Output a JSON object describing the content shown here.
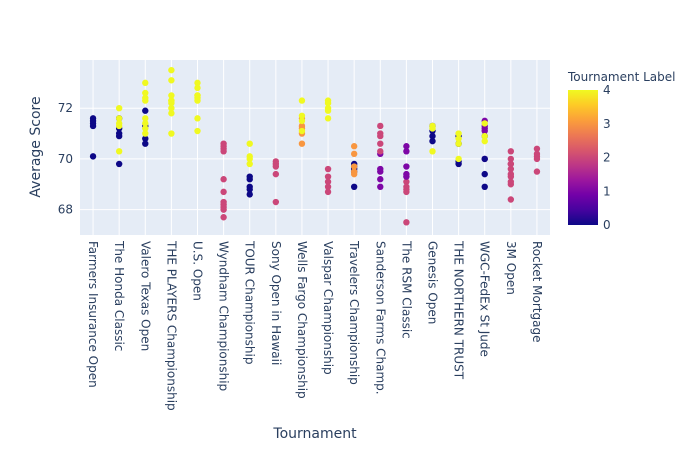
{
  "chart_data": {
    "type": "scatter",
    "xlabel": "Tournament",
    "ylabel": "Average Score",
    "ylim": [
      67.0,
      73.9
    ],
    "yticks": [
      68,
      70,
      72
    ],
    "grid": true,
    "colorbar": {
      "title": "Tournament Label",
      "range": [
        0,
        4
      ],
      "ticks": [
        0,
        1,
        2,
        3,
        4
      ],
      "colorscale": [
        "#0d0887",
        "#46039f",
        "#7201a8",
        "#9c179e",
        "#bd3786",
        "#d8576b",
        "#ed7953",
        "#fb9f3a",
        "#fdca26",
        "#f0f921"
      ]
    },
    "categories": [
      "Farmers Insurance Open",
      "The Honda Classic",
      "Valero Texas Open",
      "THE PLAYERS Championship",
      "U.S. Open",
      "Wyndham Championship",
      "TOUR Championship",
      "Sony Open in Hawaii",
      "Wells Fargo Championship",
      "Valspar Championship",
      "Travelers Championship",
      "Sanderson Farms Champ.",
      "The RSM Classic",
      "Genesis Open",
      "THE NORTHERN TRUST",
      "WGC-FedEx St Jude",
      "3M Open",
      "Rocket Mortgage"
    ],
    "points": [
      {
        "x": "Farmers Insurance Open",
        "y": 71.6,
        "label": 0
      },
      {
        "x": "Farmers Insurance Open",
        "y": 71.5,
        "label": 0
      },
      {
        "x": "Farmers Insurance Open",
        "y": 71.4,
        "label": 0
      },
      {
        "x": "Farmers Insurance Open",
        "y": 71.3,
        "label": 0
      },
      {
        "x": "Farmers Insurance Open",
        "y": 70.1,
        "label": 0
      },
      {
        "x": "The Honda Classic",
        "y": 71.6,
        "label": 0
      },
      {
        "x": "The Honda Classic",
        "y": 71.2,
        "label": 0
      },
      {
        "x": "The Honda Classic",
        "y": 71.0,
        "label": 0
      },
      {
        "x": "The Honda Classic",
        "y": 70.9,
        "label": 0
      },
      {
        "x": "The Honda Classic",
        "y": 69.8,
        "label": 0
      },
      {
        "x": "The Honda Classic",
        "y": 72.0,
        "label": 4
      },
      {
        "x": "The Honda Classic",
        "y": 71.6,
        "label": 4
      },
      {
        "x": "The Honda Classic",
        "y": 71.4,
        "label": 4
      },
      {
        "x": "The Honda Classic",
        "y": 71.3,
        "label": 4
      },
      {
        "x": "The Honda Classic",
        "y": 70.3,
        "label": 4
      },
      {
        "x": "Valero Texas Open",
        "y": 73.0,
        "label": 4
      },
      {
        "x": "Valero Texas Open",
        "y": 72.6,
        "label": 4
      },
      {
        "x": "Valero Texas Open",
        "y": 72.4,
        "label": 4
      },
      {
        "x": "Valero Texas Open",
        "y": 72.3,
        "label": 4
      },
      {
        "x": "Valero Texas Open",
        "y": 71.9,
        "label": 0
      },
      {
        "x": "Valero Texas Open",
        "y": 71.3,
        "label": 0
      },
      {
        "x": "Valero Texas Open",
        "y": 70.8,
        "label": 0
      },
      {
        "x": "Valero Texas Open",
        "y": 70.6,
        "label": 0
      },
      {
        "x": "Valero Texas Open",
        "y": 71.6,
        "label": 4
      },
      {
        "x": "Valero Texas Open",
        "y": 71.4,
        "label": 4
      },
      {
        "x": "Valero Texas Open",
        "y": 71.2,
        "label": 4
      },
      {
        "x": "Valero Texas Open",
        "y": 71.0,
        "label": 4
      },
      {
        "x": "THE PLAYERS Championship",
        "y": 72.3,
        "label": 4
      },
      {
        "x": "THE PLAYERS Championship",
        "y": 72.2,
        "label": 4
      },
      {
        "x": "THE PLAYERS Championship",
        "y": 72.0,
        "label": 4
      },
      {
        "x": "THE PLAYERS Championship",
        "y": 71.0,
        "label": 4
      },
      {
        "x": "THE PLAYERS Championship",
        "y": 73.5,
        "label": 4
      },
      {
        "x": "THE PLAYERS Championship",
        "y": 73.1,
        "label": 4
      },
      {
        "x": "THE PLAYERS Championship",
        "y": 72.5,
        "label": 4
      },
      {
        "x": "THE PLAYERS Championship",
        "y": 72.3,
        "label": 4
      },
      {
        "x": "THE PLAYERS Championship",
        "y": 71.8,
        "label": 4
      },
      {
        "x": "U.S. Open",
        "y": 73.0,
        "label": 4
      },
      {
        "x": "U.S. Open",
        "y": 72.5,
        "label": 4
      },
      {
        "x": "U.S. Open",
        "y": 72.3,
        "label": 4
      },
      {
        "x": "U.S. Open",
        "y": 71.1,
        "label": 4
      },
      {
        "x": "U.S. Open",
        "y": 72.8,
        "label": 4
      },
      {
        "x": "U.S. Open",
        "y": 72.5,
        "label": 4
      },
      {
        "x": "U.S. Open",
        "y": 72.4,
        "label": 4
      },
      {
        "x": "U.S. Open",
        "y": 71.6,
        "label": 4
      },
      {
        "x": "Wyndham Championship",
        "y": 68.7,
        "label": 2
      },
      {
        "x": "Wyndham Championship",
        "y": 68.3,
        "label": 2
      },
      {
        "x": "Wyndham Championship",
        "y": 68.2,
        "label": 2
      },
      {
        "x": "Wyndham Championship",
        "y": 68.1,
        "label": 2
      },
      {
        "x": "Wyndham Championship",
        "y": 68.0,
        "label": 2
      },
      {
        "x": "Wyndham Championship",
        "y": 67.7,
        "label": 2
      },
      {
        "x": "Wyndham Championship",
        "y": 70.6,
        "label": 2
      },
      {
        "x": "Wyndham Championship",
        "y": 70.5,
        "label": 2
      },
      {
        "x": "Wyndham Championship",
        "y": 70.4,
        "label": 2
      },
      {
        "x": "Wyndham Championship",
        "y": 70.3,
        "label": 2
      },
      {
        "x": "Wyndham Championship",
        "y": 69.2,
        "label": 2
      },
      {
        "x": "TOUR Championship",
        "y": 70.6,
        "label": 4
      },
      {
        "x": "TOUR Championship",
        "y": 70.1,
        "label": 4
      },
      {
        "x": "TOUR Championship",
        "y": 70.0,
        "label": 4
      },
      {
        "x": "TOUR Championship",
        "y": 69.8,
        "label": 4
      },
      {
        "x": "TOUR Championship",
        "y": 69.3,
        "label": 0
      },
      {
        "x": "TOUR Championship",
        "y": 69.2,
        "label": 0
      },
      {
        "x": "TOUR Championship",
        "y": 68.9,
        "label": 0
      },
      {
        "x": "TOUR Championship",
        "y": 68.8,
        "label": 0
      },
      {
        "x": "TOUR Championship",
        "y": 68.6,
        "label": 0
      },
      {
        "x": "Sony Open in Hawaii",
        "y": 69.9,
        "label": 2
      },
      {
        "x": "Sony Open in Hawaii",
        "y": 69.8,
        "label": 2
      },
      {
        "x": "Sony Open in Hawaii",
        "y": 69.7,
        "label": 2
      },
      {
        "x": "Sony Open in Hawaii",
        "y": 69.4,
        "label": 2
      },
      {
        "x": "Sony Open in Hawaii",
        "y": 68.3,
        "label": 2
      },
      {
        "x": "Wells Fargo Championship",
        "y": 71.6,
        "label": 3
      },
      {
        "x": "Wells Fargo Championship",
        "y": 71.3,
        "label": 3
      },
      {
        "x": "Wells Fargo Championship",
        "y": 71.2,
        "label": 3
      },
      {
        "x": "Wells Fargo Championship",
        "y": 71.0,
        "label": 3
      },
      {
        "x": "Wells Fargo Championship",
        "y": 70.6,
        "label": 3
      },
      {
        "x": "Wells Fargo Championship",
        "y": 72.3,
        "label": 4
      },
      {
        "x": "Wells Fargo Championship",
        "y": 71.7,
        "label": 4
      },
      {
        "x": "Wells Fargo Championship",
        "y": 71.5,
        "label": 4
      },
      {
        "x": "Wells Fargo Championship",
        "y": 71.1,
        "label": 4
      },
      {
        "x": "Valspar Championship",
        "y": 69.6,
        "label": 2
      },
      {
        "x": "Valspar Championship",
        "y": 69.3,
        "label": 2
      },
      {
        "x": "Valspar Championship",
        "y": 69.1,
        "label": 2
      },
      {
        "x": "Valspar Championship",
        "y": 68.9,
        "label": 2
      },
      {
        "x": "Valspar Championship",
        "y": 68.7,
        "label": 2
      },
      {
        "x": "Valspar Championship",
        "y": 72.3,
        "label": 4
      },
      {
        "x": "Valspar Championship",
        "y": 72.2,
        "label": 4
      },
      {
        "x": "Valspar Championship",
        "y": 72.0,
        "label": 4
      },
      {
        "x": "Valspar Championship",
        "y": 71.9,
        "label": 4
      },
      {
        "x": "Valspar Championship",
        "y": 71.6,
        "label": 4
      },
      {
        "x": "Travelers Championship",
        "y": 69.8,
        "label": 0
      },
      {
        "x": "Travelers Championship",
        "y": 69.7,
        "label": 0
      },
      {
        "x": "Travelers Championship",
        "y": 69.6,
        "label": 0
      },
      {
        "x": "Travelers Championship",
        "y": 69.5,
        "label": 0
      },
      {
        "x": "Travelers Championship",
        "y": 68.9,
        "label": 0
      },
      {
        "x": "Travelers Championship",
        "y": 70.5,
        "label": 3
      },
      {
        "x": "Travelers Championship",
        "y": 70.2,
        "label": 3
      },
      {
        "x": "Travelers Championship",
        "y": 69.7,
        "label": 3
      },
      {
        "x": "Travelers Championship",
        "y": 69.5,
        "label": 3
      },
      {
        "x": "Travelers Championship",
        "y": 69.4,
        "label": 3
      },
      {
        "x": "Sanderson Farms Champ.",
        "y": 70.2,
        "label": 1
      },
      {
        "x": "Sanderson Farms Champ.",
        "y": 69.6,
        "label": 1
      },
      {
        "x": "Sanderson Farms Champ.",
        "y": 69.5,
        "label": 1
      },
      {
        "x": "Sanderson Farms Champ.",
        "y": 69.2,
        "label": 1
      },
      {
        "x": "Sanderson Farms Champ.",
        "y": 68.9,
        "label": 1
      },
      {
        "x": "Sanderson Farms Champ.",
        "y": 71.3,
        "label": 2
      },
      {
        "x": "Sanderson Farms Champ.",
        "y": 71.0,
        "label": 2
      },
      {
        "x": "Sanderson Farms Champ.",
        "y": 70.9,
        "label": 2
      },
      {
        "x": "Sanderson Farms Champ.",
        "y": 70.6,
        "label": 2
      },
      {
        "x": "Sanderson Farms Champ.",
        "y": 70.3,
        "label": 2
      },
      {
        "x": "The RSM Classic",
        "y": 69.1,
        "label": 2
      },
      {
        "x": "The RSM Classic",
        "y": 68.9,
        "label": 2
      },
      {
        "x": "The RSM Classic",
        "y": 68.8,
        "label": 2
      },
      {
        "x": "The RSM Classic",
        "y": 68.7,
        "label": 2
      },
      {
        "x": "The RSM Classic",
        "y": 67.5,
        "label": 2
      },
      {
        "x": "The RSM Classic",
        "y": 70.5,
        "label": 1
      },
      {
        "x": "The RSM Classic",
        "y": 70.3,
        "label": 1
      },
      {
        "x": "The RSM Classic",
        "y": 69.7,
        "label": 1
      },
      {
        "x": "The RSM Classic",
        "y": 69.4,
        "label": 1
      },
      {
        "x": "The RSM Classic",
        "y": 69.3,
        "label": 1
      },
      {
        "x": "Genesis Open",
        "y": 71.3,
        "label": 0
      },
      {
        "x": "Genesis Open",
        "y": 71.1,
        "label": 0
      },
      {
        "x": "Genesis Open",
        "y": 70.9,
        "label": 0
      },
      {
        "x": "Genesis Open",
        "y": 70.7,
        "label": 0
      },
      {
        "x": "Genesis Open",
        "y": 71.3,
        "label": 4
      },
      {
        "x": "Genesis Open",
        "y": 71.2,
        "label": 4
      },
      {
        "x": "Genesis Open",
        "y": 70.3,
        "label": 4
      },
      {
        "x": "THE NORTHERN TRUST",
        "y": 70.9,
        "label": 0
      },
      {
        "x": "THE NORTHERN TRUST",
        "y": 70.6,
        "label": 0
      },
      {
        "x": "THE NORTHERN TRUST",
        "y": 69.9,
        "label": 0
      },
      {
        "x": "THE NORTHERN TRUST",
        "y": 69.8,
        "label": 0
      },
      {
        "x": "THE NORTHERN TRUST",
        "y": 71.0,
        "label": 4
      },
      {
        "x": "THE NORTHERN TRUST",
        "y": 70.8,
        "label": 4
      },
      {
        "x": "THE NORTHERN TRUST",
        "y": 70.6,
        "label": 4
      },
      {
        "x": "THE NORTHERN TRUST",
        "y": 70.0,
        "label": 4
      },
      {
        "x": "WGC-FedEx St Jude",
        "y": 71.5,
        "label": 1
      },
      {
        "x": "WGC-FedEx St Jude",
        "y": 71.3,
        "label": 1
      },
      {
        "x": "WGC-FedEx St Jude",
        "y": 71.2,
        "label": 1
      },
      {
        "x": "WGC-FedEx St Jude",
        "y": 71.1,
        "label": 1
      },
      {
        "x": "WGC-FedEx St Jude",
        "y": 70.0,
        "label": 1
      },
      {
        "x": "WGC-FedEx St Jude",
        "y": 70.9,
        "label": 0
      },
      {
        "x": "WGC-FedEx St Jude",
        "y": 70.0,
        "label": 0
      },
      {
        "x": "WGC-FedEx St Jude",
        "y": 69.4,
        "label": 0
      },
      {
        "x": "WGC-FedEx St Jude",
        "y": 68.9,
        "label": 0
      },
      {
        "x": "WGC-FedEx St Jude",
        "y": 71.4,
        "label": 4
      },
      {
        "x": "WGC-FedEx St Jude",
        "y": 70.9,
        "label": 4
      },
      {
        "x": "WGC-FedEx St Jude",
        "y": 70.7,
        "label": 4
      },
      {
        "x": "3M Open",
        "y": 70.3,
        "label": 2
      },
      {
        "x": "3M Open",
        "y": 70.0,
        "label": 2
      },
      {
        "x": "3M Open",
        "y": 69.8,
        "label": 2
      },
      {
        "x": "3M Open",
        "y": 69.6,
        "label": 2
      },
      {
        "x": "3M Open",
        "y": 69.0,
        "label": 2
      },
      {
        "x": "3M Open",
        "y": 69.8,
        "label": 2
      },
      {
        "x": "3M Open",
        "y": 69.4,
        "label": 2
      },
      {
        "x": "3M Open",
        "y": 69.3,
        "label": 2
      },
      {
        "x": "3M Open",
        "y": 69.1,
        "label": 2
      },
      {
        "x": "3M Open",
        "y": 68.4,
        "label": 2
      },
      {
        "x": "Rocket Mortgage",
        "y": 70.4,
        "label": 2
      },
      {
        "x": "Rocket Mortgage",
        "y": 70.2,
        "label": 2
      },
      {
        "x": "Rocket Mortgage",
        "y": 70.1,
        "label": 2
      },
      {
        "x": "Rocket Mortgage",
        "y": 70.0,
        "label": 2
      },
      {
        "x": "Rocket Mortgage",
        "y": 69.5,
        "label": 2
      }
    ]
  }
}
